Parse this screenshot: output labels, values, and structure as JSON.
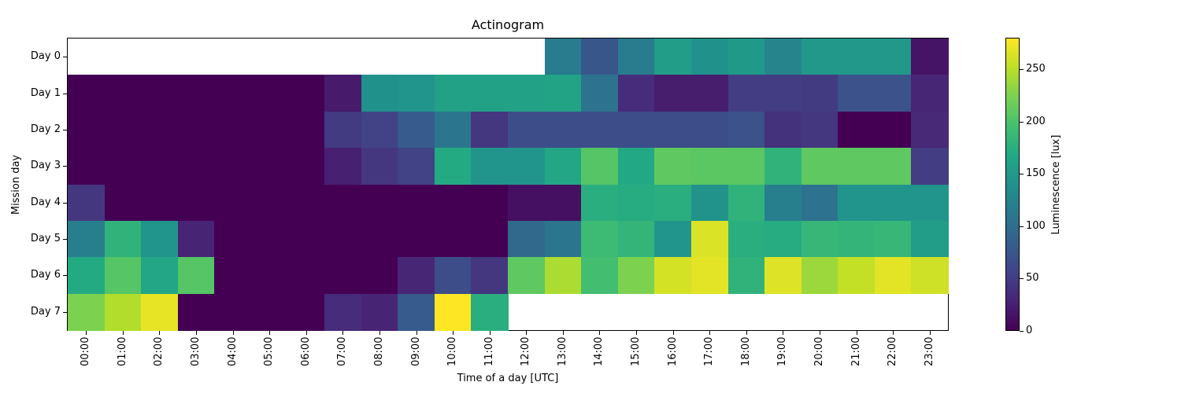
{
  "chart_data": {
    "type": "heatmap",
    "title": "Actinogram",
    "xlabel": "Time of a day [UTC]",
    "ylabel": "Mission day",
    "colorbar_label": "Luminescence [lux]",
    "colormap": "viridis",
    "vmin": 0,
    "vmax": 280,
    "colorbar_ticks": [
      0,
      50,
      100,
      150,
      200,
      250
    ],
    "x": [
      "00:00",
      "01:00",
      "02:00",
      "03:00",
      "04:00",
      "05:00",
      "06:00",
      "07:00",
      "08:00",
      "09:00",
      "10:00",
      "11:00",
      "12:00",
      "13:00",
      "14:00",
      "15:00",
      "16:00",
      "17:00",
      "18:00",
      "19:00",
      "20:00",
      "21:00",
      "22:00",
      "23:00"
    ],
    "y": [
      "Day 0",
      "Day 1",
      "Day 2",
      "Day 3",
      "Day 4",
      "Day 5",
      "Day 6",
      "Day 7"
    ],
    "values": [
      [
        null,
        null,
        null,
        null,
        null,
        null,
        null,
        null,
        null,
        null,
        null,
        null,
        null,
        115,
        75,
        115,
        155,
        140,
        150,
        125,
        148,
        148,
        148,
        15
      ],
      [
        0,
        0,
        0,
        0,
        0,
        0,
        0,
        20,
        140,
        145,
        160,
        160,
        160,
        162,
        105,
        35,
        22,
        22,
        50,
        50,
        48,
        70,
        70,
        30
      ],
      [
        0,
        0,
        0,
        0,
        0,
        0,
        0,
        48,
        55,
        80,
        110,
        45,
        65,
        65,
        65,
        65,
        65,
        65,
        70,
        40,
        45,
        0,
        0,
        32
      ],
      [
        0,
        0,
        0,
        0,
        0,
        0,
        0,
        25,
        45,
        55,
        170,
        145,
        145,
        165,
        205,
        168,
        210,
        208,
        208,
        180,
        210,
        210,
        210,
        50
      ],
      [
        45,
        0,
        0,
        0,
        0,
        0,
        0,
        0,
        0,
        0,
        0,
        0,
        12,
        12,
        175,
        172,
        175,
        142,
        180,
        120,
        105,
        145,
        145,
        145
      ],
      [
        120,
        180,
        145,
        28,
        0,
        0,
        0,
        0,
        0,
        0,
        0,
        0,
        95,
        110,
        190,
        183,
        145,
        265,
        175,
        172,
        185,
        183,
        185,
        155
      ],
      [
        170,
        205,
        165,
        205,
        0,
        0,
        0,
        0,
        0,
        30,
        65,
        45,
        210,
        245,
        195,
        225,
        262,
        268,
        180,
        266,
        238,
        255,
        268,
        260
      ],
      [
        225,
        248,
        270,
        0,
        0,
        0,
        0,
        35,
        28,
        80,
        280,
        175,
        null,
        null,
        null,
        null,
        null,
        null,
        null,
        null,
        null,
        null,
        null,
        null
      ]
    ]
  }
}
